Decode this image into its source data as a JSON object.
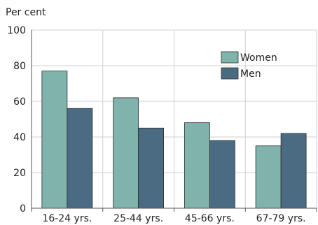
{
  "chart_data": {
    "type": "bar",
    "title": "",
    "ylabel": "Per cent",
    "xlabel": "",
    "ylim": [
      0,
      100
    ],
    "yticks": [
      0,
      20,
      40,
      60,
      80,
      100
    ],
    "categories": [
      "16-24 yrs.",
      "25-44 yrs.",
      "45-66 yrs.",
      "67-79 yrs."
    ],
    "series": [
      {
        "name": "Women",
        "color": "#7fb3ac",
        "values": [
          77,
          62,
          48,
          35
        ]
      },
      {
        "name": "Men",
        "color": "#4a6b82",
        "values": [
          56,
          45,
          38,
          42
        ]
      }
    ],
    "grid": true,
    "legend": "top-right"
  }
}
